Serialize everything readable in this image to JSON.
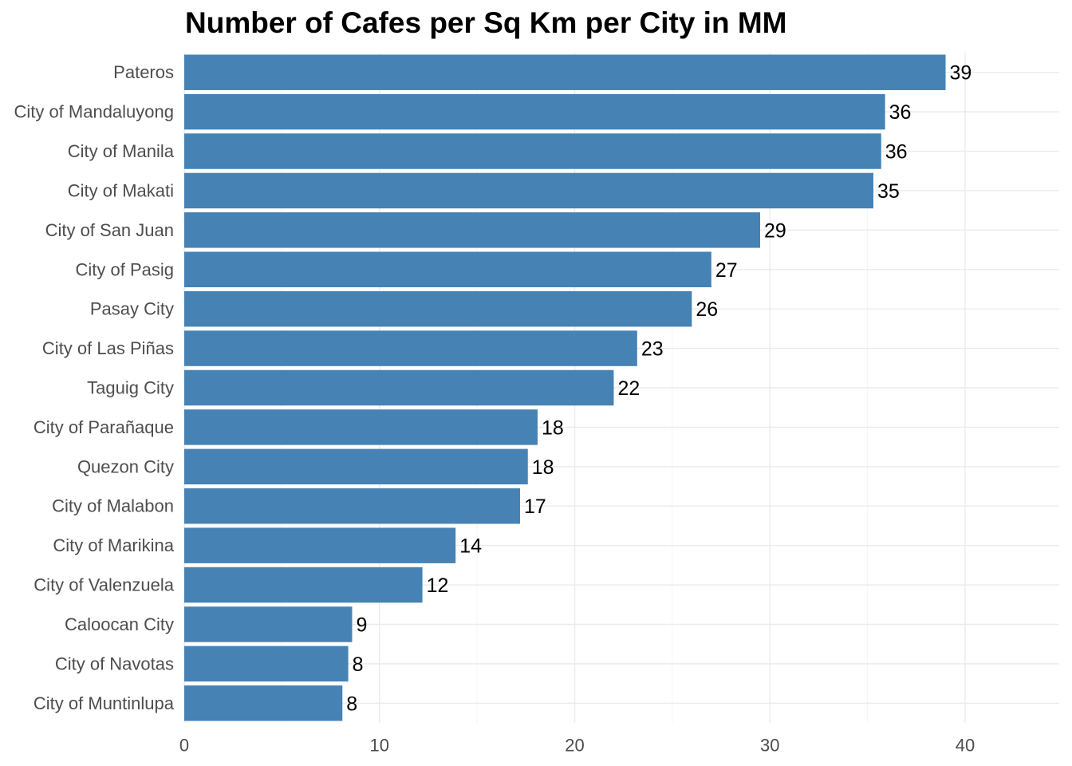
{
  "chart_data": {
    "type": "bar",
    "orientation": "horizontal",
    "title": "Number of Cafes per Sq Km per City in MM",
    "xlabel": "",
    "ylabel": "",
    "categories": [
      "Pateros",
      "City of Mandaluyong",
      "City of Manila",
      "City of Makati",
      "City of San Juan",
      "City of Pasig",
      "Pasay City",
      "City of Las Piñas",
      "Taguig City",
      "City of Parañaque",
      "Quezon City",
      "City of Malabon",
      "City of Marikina",
      "City of Valenzuela",
      "Caloocan City",
      "City of Navotas",
      "City of Muntinlupa"
    ],
    "values": [
      39.0,
      35.9,
      35.7,
      35.3,
      29.5,
      27.0,
      26.0,
      23.2,
      22.0,
      18.1,
      17.6,
      17.2,
      13.9,
      12.2,
      8.6,
      8.4,
      8.1
    ],
    "value_labels": [
      "39",
      "36",
      "36",
      "35",
      "29",
      "27",
      "26",
      "23",
      "22",
      "18",
      "18",
      "17",
      "14",
      "12",
      "9",
      "8",
      "8"
    ],
    "xlim": [
      0,
      45
    ],
    "xticks": [
      0,
      10,
      20,
      30,
      40
    ],
    "xtick_labels": [
      "0",
      "10",
      "20",
      "30",
      "40"
    ],
    "grid": true,
    "legend": "none",
    "colors": {
      "bar": "#4682B4",
      "grid_major": "#ebebeb",
      "grid_minor": "#f5f5f5",
      "axis_text": "#4d4d4d",
      "label_text": "#000000"
    }
  }
}
